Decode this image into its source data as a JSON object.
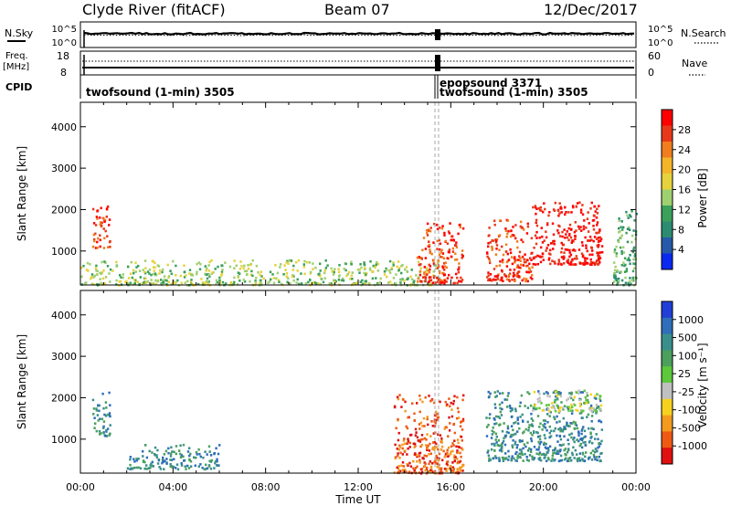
{
  "header": {
    "title_left": "Clyde River (fitACF)",
    "title_center": "Beam 07",
    "title_right": "12/Dec/2017"
  },
  "summary": {
    "left_labels": {
      "nsky": "N.Sky",
      "freq": "Freq.",
      "freq_unit": "[MHz]",
      "cpid": "CPID"
    },
    "right_labels": {
      "nsearch": "N.Search",
      "nave": "Nave"
    },
    "noise_axis_ticks": [
      "10^5",
      "10^0"
    ],
    "freq_axis_ticks": [
      "18",
      "8"
    ],
    "nave_axis_ticks": [
      "60",
      "0"
    ],
    "cpid_labels": [
      {
        "text": "twofsound (1-min) 3505"
      },
      {
        "text": "epopsound 3371"
      },
      {
        "text": "twofsound (1-min) 3505"
      }
    ]
  },
  "chart_data": [
    {
      "type": "heatmap",
      "panel": "power",
      "ylabel": "Slant Range [km]",
      "ylim": [
        180,
        4590
      ],
      "yticks": [
        "4000",
        "3000",
        "2000",
        "1000"
      ],
      "xlim": [
        "00:00",
        "24:00"
      ],
      "colorbar": {
        "label": "Power [dB]",
        "ticks": [
          "28",
          "24",
          "20",
          "16",
          "12",
          "8",
          "4"
        ],
        "colors": [
          "#ff0000",
          "#e8381a",
          "#f07d1e",
          "#f5b52a",
          "#e6d23c",
          "#9fd070",
          "#3aa05a",
          "#2c8c72",
          "#265aa8",
          "#0b28f0"
        ]
      },
      "echo_regions": [
        {
          "t_start": "00:30",
          "t_end": "01:15",
          "range_km": [
            1100,
            2150
          ],
          "peak_db": 28
        },
        {
          "t_start": "00:00",
          "t_end": "15:30",
          "range_km": [
            200,
            800
          ],
          "peak_db": 16
        },
        {
          "t_start": "14:30",
          "t_end": "16:30",
          "range_km": [
            250,
            1700
          ],
          "peak_db": 26
        },
        {
          "t_start": "17:30",
          "t_end": "19:30",
          "range_km": [
            300,
            1800
          ],
          "peak_db": 28
        },
        {
          "t_start": "19:30",
          "t_end": "22:30",
          "range_km": [
            700,
            2200
          ],
          "peak_db": 30
        },
        {
          "t_start": "23:00",
          "t_end": "24:00",
          "range_km": [
            200,
            2000
          ],
          "peak_db": 14
        }
      ]
    },
    {
      "type": "heatmap",
      "panel": "velocity",
      "ylabel": "Slant Range [km]",
      "xlabel": "Time UT",
      "ylim": [
        180,
        4590
      ],
      "yticks": [
        "4000",
        "3000",
        "2000",
        "1000"
      ],
      "xticks": [
        "00:00",
        "04:00",
        "08:00",
        "12:00",
        "16:00",
        "20:00",
        "00:00"
      ],
      "colorbar": {
        "label": "Velocity [m s⁻¹]",
        "ticks": [
          "1000",
          "500",
          "100",
          "25",
          "-25",
          "-100",
          "-500",
          "-1000"
        ],
        "colors": [
          "#1f3fd6",
          "#2f6eb8",
          "#3a8f8c",
          "#4aa05c",
          "#5cc83c",
          "#c0c0c0",
          "#f6d21e",
          "#f49a1e",
          "#ee5a14",
          "#e01010"
        ]
      },
      "echo_regions": [
        {
          "t_start": "00:30",
          "t_end": "01:15",
          "range_km": [
            1100,
            2150
          ],
          "v_ms": 300
        },
        {
          "t_start": "02:00",
          "t_end": "06:00",
          "range_km": [
            300,
            900
          ],
          "v_ms": 150
        },
        {
          "t_start": "13:30",
          "t_end": "16:30",
          "range_km": [
            200,
            2100
          ],
          "v_ms": -120
        },
        {
          "t_start": "17:30",
          "t_end": "22:30",
          "range_km": [
            500,
            2200
          ],
          "v_ms": 200
        },
        {
          "t_start": "19:30",
          "t_end": "22:30",
          "range_km": [
            1700,
            2200
          ],
          "v_ms": 0
        }
      ]
    }
  ]
}
